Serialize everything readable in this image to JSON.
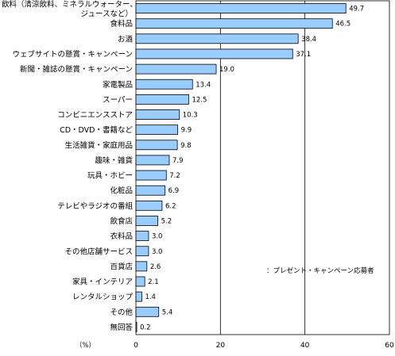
{
  "chart_data": {
    "type": "bar",
    "orientation": "horizontal",
    "categories": [
      "飲料（清涼飲料、ミネラルウォーター、ジュースなど）",
      "食料品",
      "お酒",
      "ウェブサイトの懸賞・キャンペーン",
      "新聞・雑誌の懸賞・キャンペーン",
      "家電製品",
      "スーパー",
      "コンビニエンスストア",
      "CD・DVD・書籍など",
      "生活雑貨・家庭用品",
      "趣味・雑貨",
      "玩具・ホビー",
      "化粧品",
      "テレビやラジオの番組",
      "飲食店",
      "衣料品",
      "その他店舗サービス",
      "百貨店",
      "家具・インテリア",
      "レンタルショップ",
      "その他",
      "無回答"
    ],
    "category_lines": [
      [
        "飲料（清涼飲料、ミネラルウォーター、",
        "ジュースなど）"
      ],
      [
        "食料品"
      ],
      [
        "お酒"
      ],
      [
        "ウェブサイトの懸賞・キャンペーン"
      ],
      [
        "新聞・雑誌の懸賞・キャンペーン"
      ],
      [
        "家電製品"
      ],
      [
        "スーパー"
      ],
      [
        "コンビニエンスストア"
      ],
      [
        "CD・DVD・書籍など"
      ],
      [
        "生活雑貨・家庭用品"
      ],
      [
        "趣味・雑貨"
      ],
      [
        "玩具・ホビー"
      ],
      [
        "化粧品"
      ],
      [
        "テレビやラジオの番組"
      ],
      [
        "飲食店"
      ],
      [
        "衣料品"
      ],
      [
        "その他店舗サービス"
      ],
      [
        "百貨店"
      ],
      [
        "家具・インテリア"
      ],
      [
        "レンタルショップ"
      ],
      [
        "その他"
      ],
      [
        "無回答"
      ]
    ],
    "values": [
      49.7,
      46.5,
      38.4,
      37.1,
      19.0,
      13.4,
      12.5,
      10.3,
      9.9,
      9.8,
      7.9,
      7.2,
      6.9,
      6.2,
      5.2,
      3.0,
      3.0,
      2.6,
      2.1,
      1.4,
      5.4,
      0.2
    ],
    "value_labels": [
      "49.7",
      "46.5",
      "38.4",
      "37.1",
      "19.0",
      "13.4",
      "12.5",
      "10.3",
      "9.9",
      "9.8",
      "7.9",
      "7.2",
      "6.9",
      "6.2",
      "5.2",
      "3.0",
      "3.0",
      "2.6",
      "2.1",
      "1.4",
      "5.4",
      "0.2"
    ],
    "xlim": [
      0,
      60
    ],
    "xticks": [
      0,
      20,
      40,
      60
    ],
    "xtick_labels": [
      "0",
      "20",
      "40",
      "60"
    ],
    "x_unit": "（%）",
    "annotation": "：プレゼント・キャンペーン応募者",
    "grid": true,
    "bar_color": "#99ccff",
    "bar_stroke": "#000000"
  }
}
